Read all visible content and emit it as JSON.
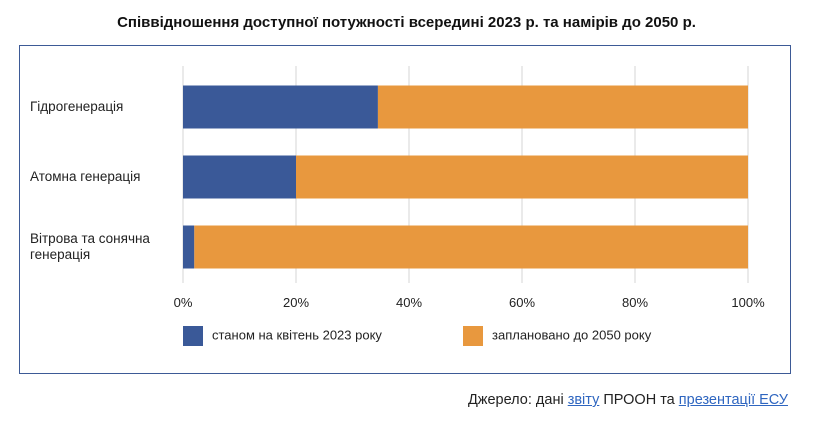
{
  "title": "Співвідношення доступної потужності всередині 2023 р. та намірів до 2050 р.",
  "chart_data": {
    "type": "bar",
    "orientation": "horizontal",
    "stacked": true,
    "categories": [
      "Гідрогенерація",
      "Атомна генерація",
      "Вітрова та сонячна генерація"
    ],
    "category_lines": [
      [
        "Гідрогенерація"
      ],
      [
        "Атомна генерація"
      ],
      [
        "Вітрова та сонячна",
        "генерація"
      ]
    ],
    "series": [
      {
        "name": "станом на квітень 2023 року",
        "color": "#3a5998",
        "values": [
          34.5,
          20,
          2
        ]
      },
      {
        "name": "заплановано до 2050 року",
        "color": "#e8983e",
        "values": [
          65.5,
          80,
          98
        ]
      }
    ],
    "xlim": [
      0,
      100
    ],
    "xticks": [
      "0%",
      "20%",
      "40%",
      "60%",
      "80%",
      "100%"
    ],
    "grid": true,
    "legend_position": "bottom"
  },
  "source": {
    "prefix": "Джерело: дані ",
    "link1": "звіту",
    "middle": " ПРООН та ",
    "link2": "презентації ЕСУ"
  }
}
